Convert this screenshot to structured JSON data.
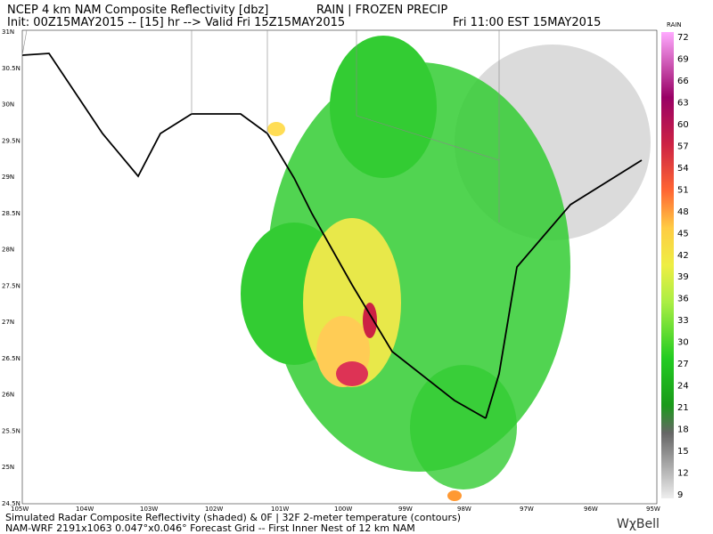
{
  "header": {
    "title": "NCEP 4 km NAM Composite Reflectivity [dbz]",
    "precip_types": "RAIN | FROZEN PRECIP",
    "init": "Init: 00Z15MAY2015 -- [15] hr --> Valid Fri 15Z15MAY2015",
    "local_time": "Fri 11:00 EST 15MAY2015"
  },
  "map": {
    "lat_labels": [
      "31N",
      "30.5N",
      "30N",
      "29.5N",
      "29N",
      "28.5N",
      "28N",
      "27.5N",
      "27N",
      "26.5N",
      "26N",
      "25.5N",
      "25N",
      "24.5N"
    ],
    "lon_labels": [
      "105W",
      "104W",
      "103W",
      "102W",
      "101W",
      "100W",
      "99W",
      "98W",
      "97W",
      "96W",
      "95W"
    ]
  },
  "colorbar": {
    "title": "RAIN",
    "labels": [
      72,
      69,
      66,
      63,
      60,
      57,
      54,
      51,
      48,
      45,
      42,
      39,
      36,
      33,
      30,
      27,
      24,
      21,
      18,
      15,
      12,
      9
    ]
  },
  "footer": {
    "line1": "Simulated Radar Composite Reflectivity (shaded) & 0F | 32F 2-meter temperature (contours)",
    "line2": "NAM-WRF 2191x1063 0.047°x0.046° Forecast Grid -- First Inner Nest of 12 km NAM",
    "logo": "WχBell"
  }
}
